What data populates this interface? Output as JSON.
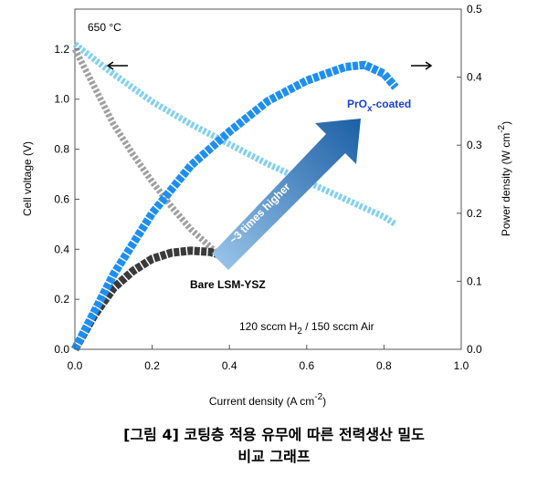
{
  "chart_data": {
    "type": "line",
    "ylabel": "Cell voltage (V)",
    "y2label": [
      "Power density (W cm",
      "-2",
      ")"
    ],
    "xlabel": [
      "Current density (A cm",
      "-2",
      ")"
    ],
    "xlim": [
      0,
      1
    ],
    "xticks": [
      {
        "value": 0,
        "label": "0.0"
      },
      0.2,
      0.4,
      0.6,
      0.8,
      {
        "value": 1,
        "label": "1.0"
      }
    ],
    "ylim": [
      0,
      1.36
    ],
    "yticks": [
      {
        "value": 0,
        "label": "0.0"
      },
      0.2,
      0.4,
      0.6,
      0.8,
      {
        "value": 1,
        "label": "1.0"
      },
      1.2
    ],
    "y2lim": [
      0,
      0.5
    ],
    "y2ticks": [
      {
        "value": 0,
        "label": "0.0"
      },
      0.1,
      0.2,
      0.3,
      0.4,
      0.5
    ],
    "annotations": {
      "temperature": "650 °C",
      "bare": "Bare LSM-YSZ",
      "coated": [
        "PrO",
        "x",
        "-coated"
      ],
      "gain": "~3 times higher",
      "gas": [
        "120 sccm H",
        "2",
        " / 150 sccm Air"
      ]
    },
    "series": [
      {
        "color": "#a0a0a0",
        "marker": "hollow",
        "x": [
          0,
          0.05,
          0.1,
          0.15,
          0.2,
          0.25,
          0.3,
          0.35,
          0.37
        ],
        "values": [
          1.2,
          1.05,
          0.9,
          0.78,
          0.67,
          0.57,
          0.48,
          0.41,
          0.38
        ]
      },
      {
        "color": "#3a3a3a",
        "marker": "filled",
        "axis": "y2",
        "x": [
          0,
          0.05,
          0.1,
          0.15,
          0.2,
          0.25,
          0.3,
          0.35,
          0.37
        ],
        "values": [
          0,
          0.05,
          0.09,
          0.115,
          0.133,
          0.142,
          0.145,
          0.143,
          0.14
        ]
      },
      {
        "color": "#7fd0f0",
        "marker": "hollow",
        "x": [
          0,
          0.1,
          0.2,
          0.3,
          0.4,
          0.5,
          0.6,
          0.7,
          0.8,
          0.83
        ],
        "values": [
          1.22,
          1.1,
          0.99,
          0.9,
          0.82,
          0.74,
          0.67,
          0.6,
          0.53,
          0.5
        ]
      },
      {
        "color": "#1e8ff0",
        "marker": "filled",
        "axis": "y2",
        "x": [
          0,
          0.1,
          0.2,
          0.3,
          0.4,
          0.5,
          0.6,
          0.7,
          0.75,
          0.8,
          0.83
        ],
        "values": [
          0,
          0.11,
          0.2,
          0.27,
          0.32,
          0.365,
          0.395,
          0.415,
          0.418,
          0.405,
          0.385
        ]
      }
    ]
  },
  "caption": [
    "[그림 4] 코팅층 적용 유무에 따른 전력생산 밀도",
    "비교 그래프"
  ]
}
